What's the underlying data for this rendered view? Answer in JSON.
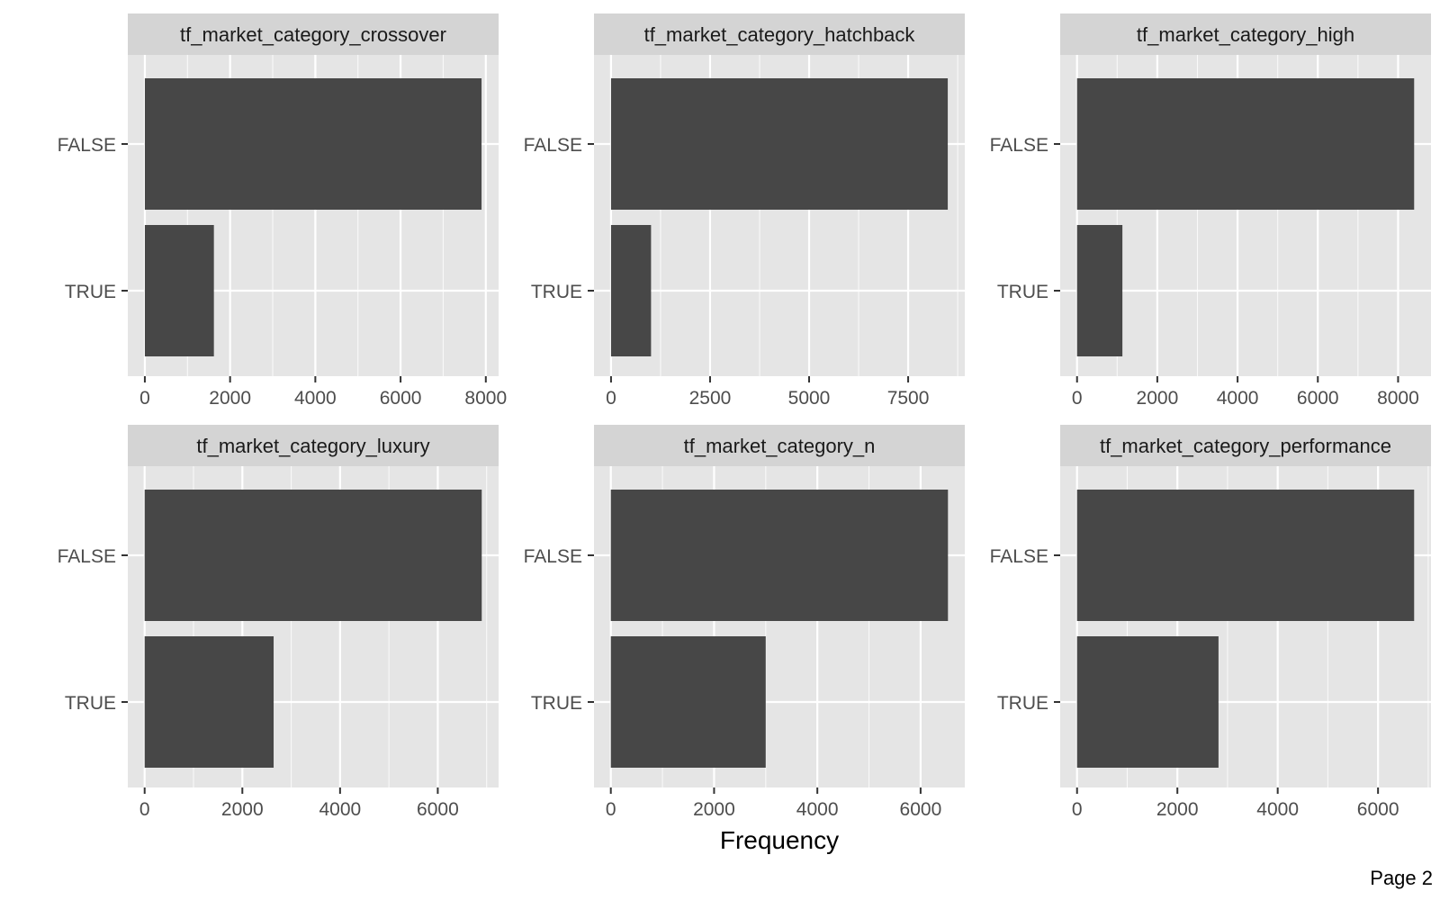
{
  "chart_data": [
    {
      "type": "bar",
      "orientation": "horizontal",
      "title": "tf_market_category_crossover",
      "categories": [
        "FALSE",
        "TRUE"
      ],
      "values": [
        7900,
        1620
      ],
      "xticks": [
        0,
        2000,
        4000,
        6000,
        8000
      ],
      "xlim": [
        -400,
        8300
      ],
      "xgrid_minor": true
    },
    {
      "type": "bar",
      "orientation": "horizontal",
      "title": "tf_market_category_hatchback",
      "categories": [
        "FALSE",
        "TRUE"
      ],
      "values": [
        8500,
        1010
      ],
      "xticks": [
        0,
        2500,
        5000,
        7500
      ],
      "xlim": [
        -430,
        8930
      ],
      "xgrid_minor": true
    },
    {
      "type": "bar",
      "orientation": "horizontal",
      "title": "tf_market_category_high",
      "categories": [
        "FALSE",
        "TRUE"
      ],
      "values": [
        8400,
        1130
      ],
      "xticks": [
        0,
        2000,
        4000,
        6000,
        8000
      ],
      "xlim": [
        -420,
        8820
      ],
      "xgrid_minor": true
    },
    {
      "type": "bar",
      "orientation": "horizontal",
      "title": "tf_market_category_luxury",
      "categories": [
        "FALSE",
        "TRUE"
      ],
      "values": [
        6900,
        2640
      ],
      "xticks": [
        0,
        2000,
        4000,
        6000
      ],
      "xlim": [
        -345,
        7245
      ],
      "xgrid_minor": true
    },
    {
      "type": "bar",
      "orientation": "horizontal",
      "title": "tf_market_category_n",
      "categories": [
        "FALSE",
        "TRUE"
      ],
      "values": [
        6530,
        3000
      ],
      "xticks": [
        0,
        2000,
        4000,
        6000
      ],
      "xlim": [
        -326,
        6856
      ],
      "xgrid_minor": true
    },
    {
      "type": "bar",
      "orientation": "horizontal",
      "title": "tf_market_category_performance",
      "categories": [
        "FALSE",
        "TRUE"
      ],
      "values": [
        6720,
        2820
      ],
      "xticks": [
        0,
        2000,
        4000,
        6000
      ],
      "xlim": [
        -336,
        7056
      ],
      "xgrid_minor": true
    }
  ],
  "xlabel": "Frequency",
  "page_label": "Page 2",
  "colors": {
    "bar": "#474747",
    "panel_background": "#e5e5e5",
    "strip_background": "#d4d4d4",
    "grid": "#ffffff",
    "tick_text": "#4d4d4d",
    "tick_mark": "#333333"
  }
}
